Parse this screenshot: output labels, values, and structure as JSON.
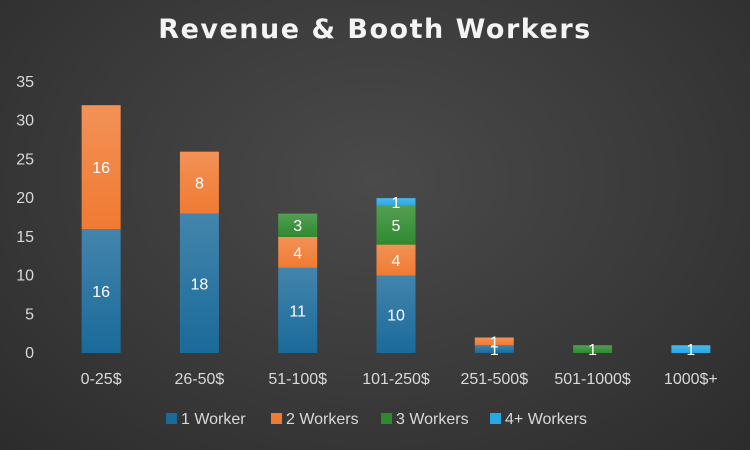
{
  "chart_data": {
    "type": "bar",
    "stacked": true,
    "title": "Revenue & Booth Workers",
    "xlabel": "",
    "ylabel": "",
    "ylim": [
      0,
      35
    ],
    "yticks": [
      0,
      5,
      10,
      15,
      20,
      25,
      30,
      35
    ],
    "grid": false,
    "legend_position": "bottom",
    "categories": [
      "0-25$",
      "26-50$",
      "51-100$",
      "101-250$",
      "251-500$",
      "501-1000$",
      "1000$+"
    ],
    "series": [
      {
        "name": "1 Worker",
        "color": "#1a6a9a",
        "values": [
          16,
          18,
          11,
          10,
          1,
          0,
          0
        ]
      },
      {
        "name": "2 Workers",
        "color": "#f07a32",
        "values": [
          16,
          8,
          4,
          4,
          1,
          0,
          0
        ]
      },
      {
        "name": "3 Workers",
        "color": "#2e8a2e",
        "values": [
          0,
          0,
          3,
          5,
          0,
          1,
          0
        ]
      },
      {
        "name": "4+ Workers",
        "color": "#26a8e6",
        "values": [
          0,
          0,
          0,
          1,
          0,
          0,
          1
        ]
      }
    ]
  }
}
